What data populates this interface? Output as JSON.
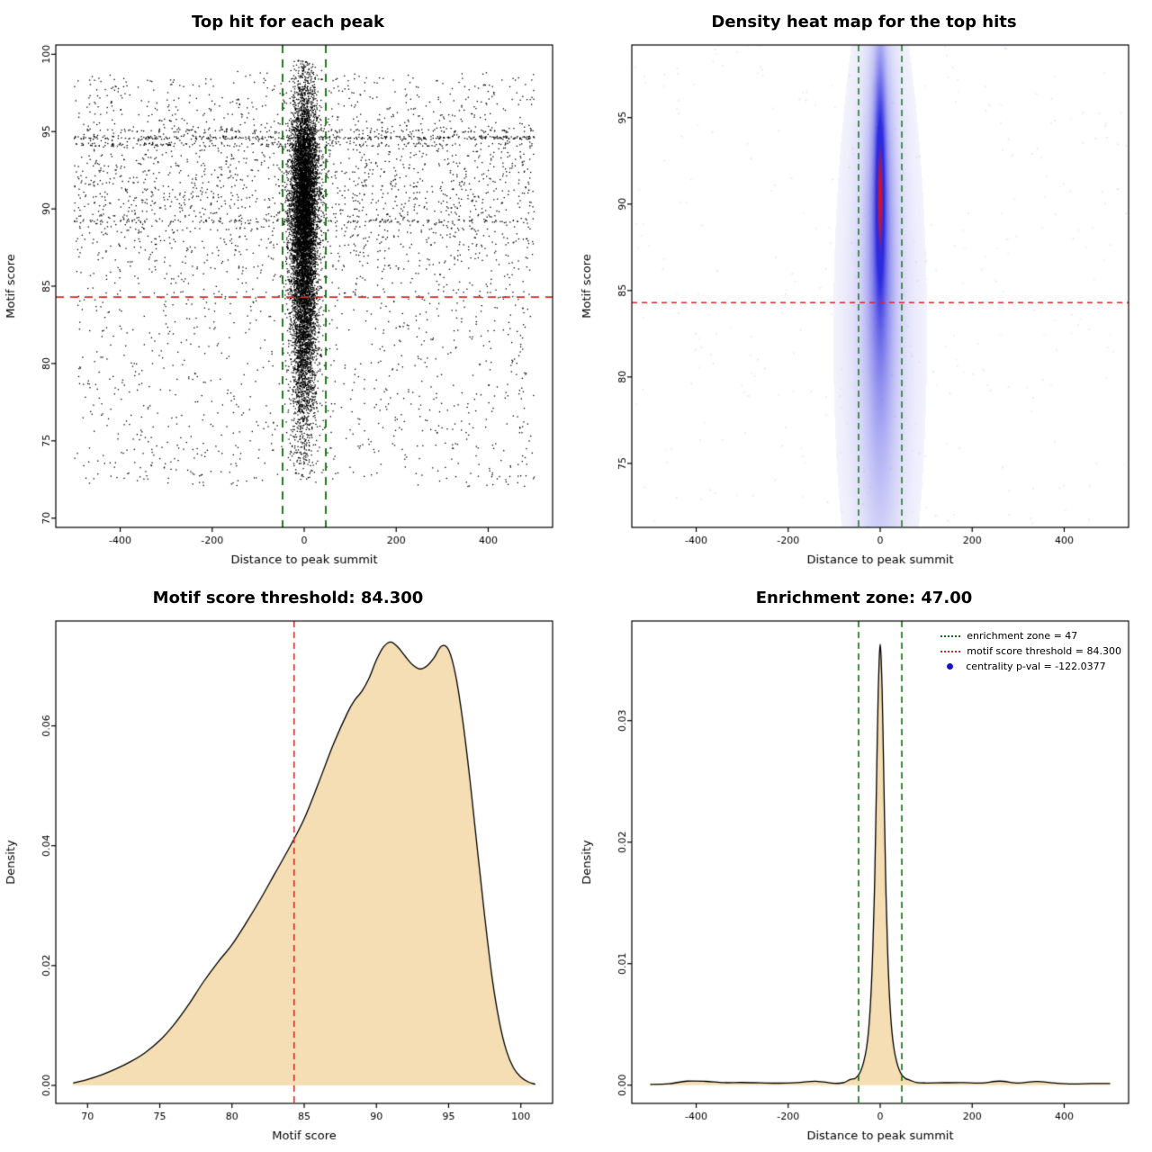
{
  "page": {
    "background": "#ffffff"
  },
  "chart_data": [
    {
      "id": "top-hit-scatter",
      "type": "scatter",
      "title": "Top hit for each peak",
      "xlabel": "Distance to peak summit",
      "ylabel": "Motif score",
      "xlim": [
        -540,
        540
      ],
      "ylim": [
        69.4,
        100.6
      ],
      "xticks": [
        -400,
        -200,
        0,
        200,
        400
      ],
      "yticks": [
        70,
        75,
        80,
        85,
        90,
        95,
        100
      ],
      "hline": {
        "y": 84.3,
        "color": "#e02525"
      },
      "vlines": {
        "x": [
          -47,
          47
        ],
        "color": "#0d6e0d"
      },
      "cloud": {
        "seed": 42,
        "background_n": 3200,
        "background_y_range": [
          72,
          98.5
        ],
        "streaks": [
          {
            "y": 94.6,
            "n": 300
          },
          {
            "y": 94.15,
            "n": 150
          },
          {
            "y": 95.05,
            "n": 100
          },
          {
            "y": 89.2,
            "n": 130
          }
        ],
        "cluster_n": 9000,
        "cluster_x_sd": 15,
        "components": [
          {
            "w": 0.62,
            "mean": 91,
            "sd": 3.4
          },
          {
            "w": 0.38,
            "mean": 83.5,
            "sd": 4.5
          }
        ],
        "y_max": 99.7
      }
    },
    {
      "id": "top-hit-density-heatmap",
      "type": "heatmap",
      "title": "Density heat map for the top hits",
      "xlabel": "Distance to peak summit",
      "ylabel": "Motif score",
      "xlim": [
        -540,
        540
      ],
      "ylim": [
        71.3,
        99.2
      ],
      "xticks": [
        -400,
        -200,
        0,
        200,
        400
      ],
      "yticks": [
        75,
        80,
        85,
        90,
        95
      ],
      "hline": {
        "y": 84.3,
        "color": "#e02525"
      },
      "vlines": {
        "x": [
          -47,
          47
        ],
        "color": "#0d6e0d"
      },
      "colors": {
        "low": "#ffffff",
        "mid": "#2d2bdf",
        "high": "#e41016"
      },
      "speckles": 320,
      "blobs": [
        {
          "amp": 1.0,
          "x": 0,
          "sx": 7,
          "y": 91,
          "sy": 3.9
        },
        {
          "amp": 0.4,
          "x": 0,
          "sx": 15,
          "y": 88,
          "sy": 6.0
        },
        {
          "amp": 0.15,
          "x": 0,
          "sx": 26,
          "y": 84,
          "sy": 8.5
        },
        {
          "amp": 0.05,
          "x": 0,
          "sx": 55,
          "y": 82.5,
          "sy": 10.5
        }
      ]
    },
    {
      "id": "motif-score-density",
      "type": "density",
      "title": "Motif score threshold: 84.300",
      "xlabel": "Motif score",
      "ylabel": "Density",
      "xlim": [
        67.8,
        102.2
      ],
      "ylim": [
        -0.003,
        0.0775
      ],
      "xticks": [
        70,
        75,
        80,
        85,
        90,
        95,
        100
      ],
      "yticks": [
        0,
        0.02,
        0.04,
        0.06
      ],
      "ytick_labels": [
        "0.00",
        "0.02",
        "0.04",
        "0.06"
      ],
      "vline": {
        "x": 84.3,
        "color": "#e02525"
      },
      "fill": "#f5deb3",
      "curve": {
        "x": [
          69,
          70,
          71,
          72,
          73,
          74,
          75,
          76,
          77,
          78,
          79,
          80,
          81,
          82,
          83,
          84,
          85,
          86,
          87,
          88,
          88.5,
          89,
          89.5,
          90,
          90.5,
          91,
          91.5,
          92,
          92.5,
          93,
          93.5,
          94,
          94.5,
          95,
          95.5,
          96,
          96.5,
          97,
          97.5,
          98,
          98.5,
          99,
          99.5,
          100,
          100.5,
          101
        ],
        "y": [
          0.0004,
          0.001,
          0.0018,
          0.0028,
          0.004,
          0.0055,
          0.0075,
          0.0102,
          0.0135,
          0.0172,
          0.0205,
          0.0235,
          0.0272,
          0.0312,
          0.0355,
          0.0398,
          0.0445,
          0.0505,
          0.0568,
          0.0622,
          0.0643,
          0.0658,
          0.068,
          0.071,
          0.0732,
          0.074,
          0.0731,
          0.0716,
          0.0702,
          0.0695,
          0.07,
          0.0714,
          0.0733,
          0.0727,
          0.0683,
          0.0605,
          0.0505,
          0.0392,
          0.0282,
          0.0182,
          0.0108,
          0.0058,
          0.0029,
          0.0014,
          0.0006,
          0.0002
        ]
      }
    },
    {
      "id": "distance-density",
      "type": "density",
      "title": "Enrichment zone: 47.00",
      "xlabel": "Distance to peak summit",
      "ylabel": "Density",
      "xlim": [
        -540,
        540
      ],
      "ylim": [
        -0.0015,
        0.0382
      ],
      "xticks": [
        -400,
        -200,
        0,
        200,
        400
      ],
      "yticks": [
        0,
        0.01,
        0.02,
        0.03
      ],
      "ytick_labels": [
        "0.00",
        "0.01",
        "0.02",
        "0.03"
      ],
      "vlines": {
        "x": [
          -47,
          47
        ],
        "color": "#0d6e0d"
      },
      "fill": "#f5deb3",
      "curve": {
        "jitter": true,
        "x": [
          -500,
          -460,
          -420,
          -380,
          -340,
          -300,
          -260,
          -220,
          -180,
          -140,
          -100,
          -80,
          -65,
          -55,
          -48,
          -42,
          -36,
          -30,
          -25,
          -20,
          -16,
          -12,
          -9,
          -6,
          -4,
          -2,
          0,
          2,
          4,
          6,
          9,
          12,
          16,
          20,
          25,
          30,
          36,
          42,
          48,
          55,
          65,
          80,
          100,
          140,
          180,
          220,
          260,
          300,
          340,
          380,
          420,
          460,
          500
        ],
        "y": [
          0.0002,
          0.00024,
          0.0002,
          0.00026,
          0.0002,
          0.00025,
          0.0002,
          0.00024,
          0.0002,
          0.00026,
          0.00022,
          0.0003,
          0.0004,
          0.00055,
          0.0008,
          0.0012,
          0.0019,
          0.003,
          0.0046,
          0.0075,
          0.0113,
          0.0168,
          0.0228,
          0.0292,
          0.0328,
          0.0352,
          0.0363,
          0.0352,
          0.0328,
          0.0292,
          0.0228,
          0.0168,
          0.0113,
          0.0075,
          0.0046,
          0.003,
          0.0019,
          0.0012,
          0.0008,
          0.00055,
          0.0004,
          0.0003,
          0.00022,
          0.00026,
          0.0002,
          0.00024,
          0.0002,
          0.00025,
          0.0002,
          0.00026,
          0.0002,
          0.00024,
          0.0002
        ]
      },
      "legend": [
        {
          "label": "enrichment zone = 47",
          "color": "#0d6e0d",
          "marker": "dotted-line"
        },
        {
          "label": "motif score threshold = 84.300",
          "color": "#e02525",
          "marker": "dotted-line"
        },
        {
          "label": "centrality p-val = -122.0377",
          "color": "#1414cc",
          "marker": "point"
        }
      ]
    }
  ]
}
